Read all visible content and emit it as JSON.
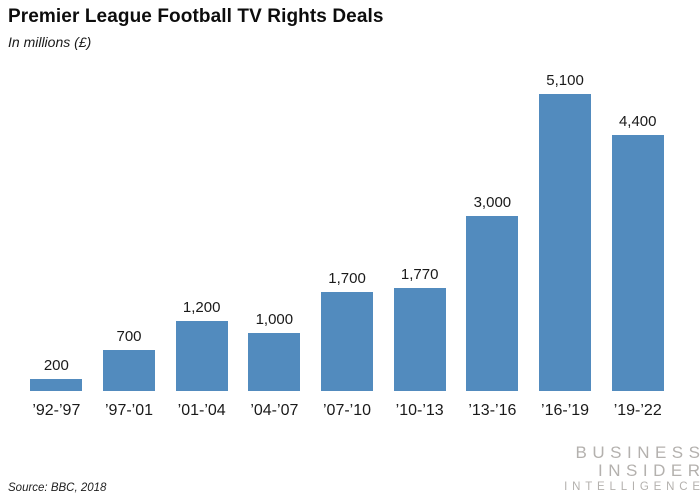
{
  "header": {
    "title": "Premier League Football TV Rights Deals",
    "subtitle": "In millions (£)"
  },
  "chart_data": {
    "type": "bar",
    "title": "Premier League Football TV Rights Deals",
    "subtitle": "In millions (£)",
    "categories": [
      "’92-’97",
      "’97-’01",
      "’01-’04",
      "’04-’07",
      "’07-’10",
      "’10-’13",
      "’13-’16",
      "’16-’19",
      "’19-’22"
    ],
    "values": [
      200,
      700,
      1200,
      1000,
      1700,
      1770,
      3000,
      5100,
      4400
    ],
    "value_labels": [
      "200",
      "700",
      "1,200",
      "1,000",
      "1,700",
      "1,770",
      "3,000",
      "5,100",
      "4,400"
    ],
    "xlabel": "",
    "ylabel": "In millions (£)",
    "ylim": [
      0,
      5100
    ],
    "grid": false,
    "legend": false,
    "bar_color": "#528bbe",
    "label_position": "above-bars"
  },
  "footer": {
    "source": "Source: BBC, 2018",
    "logo_lines": [
      "BUSINESS",
      "INSIDER",
      "INTELLIGENCE"
    ]
  }
}
